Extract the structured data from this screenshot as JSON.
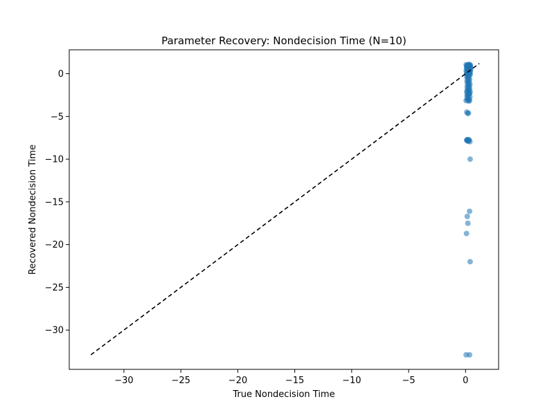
{
  "chart_data": {
    "type": "scatter",
    "title": "Parameter Recovery: Nondecision Time (N=10)",
    "xlabel": "True Nondecision Time",
    "ylabel": "Recovered Nondecision Time",
    "xlim": [
      -34.8,
      2.9
    ],
    "ylim": [
      -34.6,
      2.8
    ],
    "xticks": [
      -30,
      -25,
      -20,
      -15,
      -10,
      -5,
      0
    ],
    "yticks": [
      0,
      -5,
      -10,
      -15,
      -20,
      -25,
      -30
    ],
    "xtick_labels": [
      "−30",
      "−25",
      "−20",
      "−15",
      "−10",
      "−5",
      "0"
    ],
    "ytick_labels": [
      "0",
      "−5",
      "−10",
      "−15",
      "−20",
      "−25",
      "−30"
    ],
    "grid": false,
    "point_color": "#1f77b4",
    "point_opacity": 0.55,
    "identity_line": {
      "from": [
        -32.9,
        -32.9
      ],
      "to": [
        1.2,
        1.2
      ],
      "color": "#000000",
      "style": "dashed"
    },
    "x": [
      0.05,
      0.12,
      0.18,
      0.22,
      0.28,
      0.33,
      0.38,
      0.42,
      0.1,
      0.15,
      0.2,
      0.25,
      0.3,
      0.35,
      0.4,
      0.45,
      0.08,
      0.14,
      0.19,
      0.24,
      0.29,
      0.34,
      0.39,
      0.44,
      0.06,
      0.13,
      0.17,
      0.23,
      0.27,
      0.32,
      0.37,
      0.43,
      0.09,
      0.16,
      0.21,
      0.26,
      0.31,
      0.36,
      0.41,
      0.11,
      0.2,
      0.3,
      0.15,
      0.25,
      0.35,
      0.12,
      0.22,
      0.32,
      0.18,
      0.28,
      0.38,
      0.14,
      0.24,
      0.34,
      0.16,
      0.26,
      0.36,
      0.1,
      0.2,
      0.3,
      0.4,
      0.15,
      0.25,
      0.35,
      0.12,
      0.22,
      0.18,
      0.28,
      0.38,
      0.14,
      0.24,
      0.05,
      0.3,
      0.35,
      0.1,
      0.25,
      0.2,
      0.12,
      0.3,
      0.1,
      0.18,
      0.15,
      0.2,
      0.3,
      0.22,
      0.38,
      0.4,
      0.35,
      0.15,
      0.2,
      0.08,
      0.4,
      0.35,
      0.05
    ],
    "y": [
      1.05,
      1.0,
      0.95,
      0.9,
      1.1,
      1.05,
      0.98,
      1.02,
      0.85,
      0.8,
      0.75,
      0.7,
      0.72,
      0.78,
      0.82,
      0.76,
      0.6,
      0.55,
      0.5,
      0.58,
      0.62,
      0.52,
      0.48,
      0.56,
      0.3,
      0.25,
      0.2,
      0.35,
      0.28,
      0.22,
      0.32,
      0.26,
      0.0,
      -0.1,
      -0.05,
      0.05,
      -0.15,
      0.02,
      -0.08,
      -0.3,
      -0.4,
      -0.35,
      -0.6,
      -0.7,
      -0.65,
      -0.9,
      -1.0,
      -0.95,
      -1.2,
      -1.3,
      -1.25,
      -1.5,
      -1.6,
      -1.55,
      -1.8,
      -1.9,
      -1.85,
      -2.1,
      -2.0,
      -2.2,
      -2.15,
      -2.3,
      -2.4,
      -2.35,
      -2.6,
      -2.5,
      -2.8,
      -2.9,
      -2.7,
      -3.0,
      -3.1,
      -3.15,
      -3.2,
      -3.1,
      -4.5,
      -4.6,
      -4.65,
      -7.75,
      -7.75,
      -7.8,
      -7.7,
      -7.78,
      -7.85,
      -7.75,
      -7.9,
      -7.95,
      -10.0,
      -16.1,
      -16.7,
      -17.5,
      -18.7,
      -22.0,
      -32.9,
      -32.9
    ]
  }
}
